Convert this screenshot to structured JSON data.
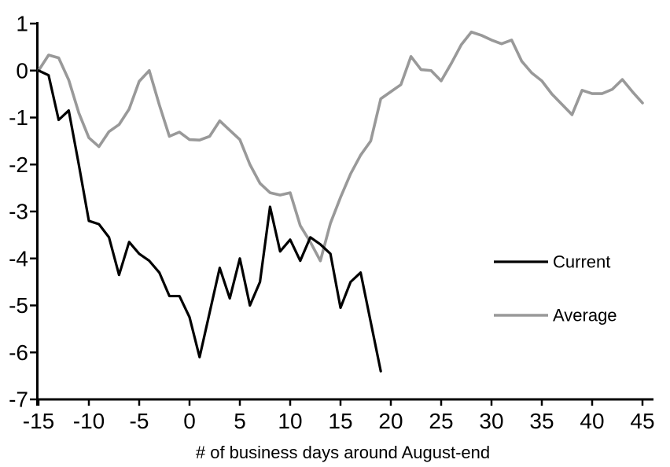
{
  "figure": {
    "background": "#ffffff",
    "text_color": "#000000",
    "axis_color": "#000000"
  },
  "chart_data": {
    "type": "line",
    "title": "",
    "xlabel": "# of business days around August-end",
    "ylabel": "",
    "xlim": [
      -15,
      45
    ],
    "ylim": [
      -7,
      1
    ],
    "xticks": [
      -15,
      -10,
      -5,
      0,
      5,
      10,
      15,
      20,
      25,
      30,
      35,
      40,
      45
    ],
    "yticks": [
      1,
      0,
      -1,
      -2,
      -3,
      -4,
      -5,
      -6,
      -7
    ],
    "grid": false,
    "legend_position": "right-middle",
    "series": [
      {
        "name": "Current",
        "color": "#000000",
        "x": [
          -15,
          -14,
          -13,
          -12,
          -11,
          -10,
          -9,
          -8,
          -7,
          -6,
          -5,
          -4,
          -3,
          -2,
          -1,
          0,
          1,
          2,
          3,
          4,
          5,
          6,
          7,
          8,
          9,
          10,
          11,
          12,
          13,
          14,
          15,
          16,
          17,
          18,
          19
        ],
        "values": [
          0,
          -0.1,
          -1.05,
          -0.85,
          -2.0,
          -3.2,
          -3.27,
          -3.55,
          -4.35,
          -3.65,
          -3.9,
          -4.05,
          -4.3,
          -4.8,
          -4.8,
          -5.25,
          -6.1,
          -5.15,
          -4.2,
          -4.85,
          -4.0,
          -5.0,
          -4.5,
          -2.9,
          -3.85,
          -3.6,
          -4.05,
          -3.55,
          -3.7,
          -3.9,
          -5.05,
          -4.5,
          -4.3,
          -5.35,
          -6.4
        ]
      },
      {
        "name": "Average",
        "color": "#999999",
        "x": [
          -15,
          -14,
          -13,
          -12,
          -11,
          -10,
          -9,
          -8,
          -7,
          -6,
          -5,
          -4,
          -3,
          -2,
          -1,
          0,
          1,
          2,
          3,
          4,
          5,
          6,
          7,
          8,
          9,
          10,
          11,
          12,
          13,
          14,
          15,
          16,
          17,
          18,
          19,
          20,
          21,
          22,
          23,
          24,
          25,
          26,
          27,
          28,
          29,
          30,
          31,
          32,
          33,
          34,
          35,
          36,
          37,
          38,
          39,
          40,
          41,
          42,
          43,
          44,
          45
        ],
        "values": [
          0,
          0.33,
          0.27,
          -0.2,
          -0.9,
          -1.43,
          -1.62,
          -1.3,
          -1.15,
          -0.82,
          -0.23,
          0.0,
          -0.73,
          -1.4,
          -1.31,
          -1.47,
          -1.48,
          -1.4,
          -1.07,
          -1.27,
          -1.47,
          -2.0,
          -2.4,
          -2.6,
          -2.65,
          -2.6,
          -3.3,
          -3.65,
          -4.05,
          -3.25,
          -2.7,
          -2.2,
          -1.8,
          -1.5,
          -0.6,
          -0.45,
          -0.3,
          0.3,
          0.02,
          0.0,
          -0.22,
          0.15,
          0.55,
          0.82,
          0.75,
          0.65,
          0.57,
          0.65,
          0.2,
          -0.05,
          -0.22,
          -0.5,
          -0.72,
          -0.94,
          -0.42,
          -0.49,
          -0.49,
          -0.4,
          -0.19,
          -0.45,
          -0.69
        ]
      }
    ]
  }
}
